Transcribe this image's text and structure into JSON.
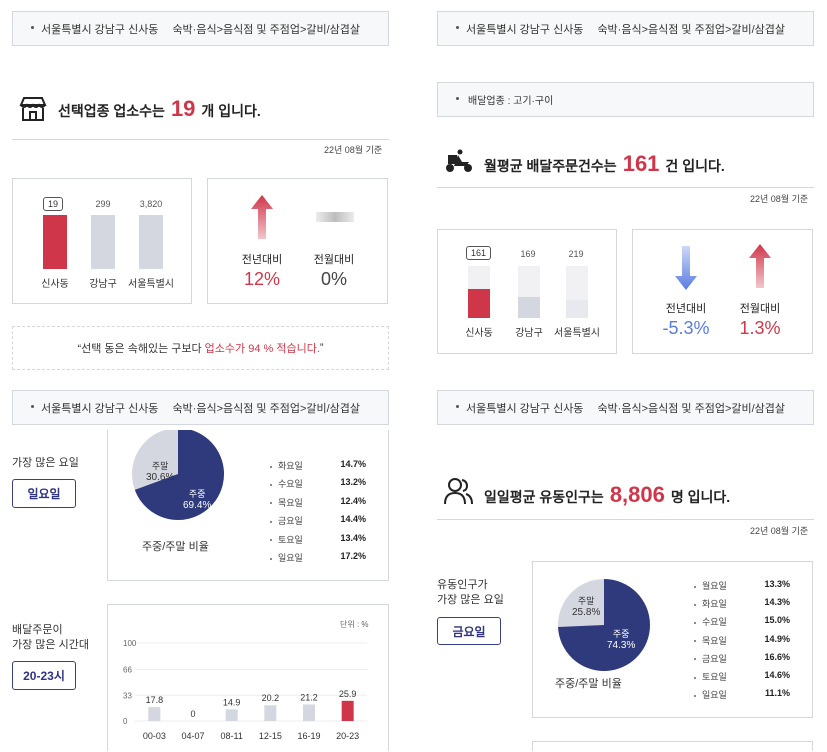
{
  "breadcrumb": {
    "region": "서울특별시 강남구 신사동",
    "category": "숙박·음식>음식점 및 주점업>갈비/삼겹살"
  },
  "panel1": {
    "title_pre": "선택업종 업소수는",
    "title_num": "19",
    "title_post": "개 입니다.",
    "basis": "22년 08월 기준",
    "bars": [
      {
        "label": "신사동",
        "value": "19",
        "fill": 0.25,
        "highlight": true
      },
      {
        "label": "강남구",
        "value": "299",
        "fill": 1,
        "highlight": false
      },
      {
        "label": "서울특별시",
        "value": "3,820",
        "fill": 1,
        "highlight": false
      }
    ],
    "yoy_label": "전년대비",
    "yoy_value": "12%",
    "mom_label": "전월대비",
    "mom_value": "0%",
    "note_pre": "“선택 동은 속해있는 구보다",
    "note_hl": "업소수가 94 % 적습니다.",
    "note_post": "”"
  },
  "panel2": {
    "delivery_type": "배달업종 : 고기·구이",
    "title_pre": "월평균 배달주문건수는",
    "title_num": "161",
    "title_post": "건 입니다.",
    "basis": "22년 08월 기준",
    "bars": [
      {
        "label": "신사동",
        "value": "161",
        "fill": 0.55,
        "highlight": true
      },
      {
        "label": "강남구",
        "value": "169",
        "fill": 0.4,
        "highlight": false
      },
      {
        "label": "서울특별시",
        "value": "219",
        "fill": 0.35,
        "highlight": false
      }
    ],
    "yoy_label": "전년대비",
    "yoy_value": "-5.3%",
    "mom_label": "전월대비",
    "mom_value": "1.3%"
  },
  "panel3": {
    "busiest_day_label": "가장 많은 요일",
    "busiest_day": "일요일",
    "pie": {
      "weekend_label": "주말",
      "weekend": "30.6%",
      "weekday_label": "주중",
      "weekday": "69.4%",
      "weekday_frac": 0.694
    },
    "pie_caption": "주중/주말 비율",
    "days": [
      {
        "d": "화요일",
        "v": "14.7%"
      },
      {
        "d": "수요일",
        "v": "13.2%"
      },
      {
        "d": "목요일",
        "v": "12.4%"
      },
      {
        "d": "금요일",
        "v": "14.4%"
      },
      {
        "d": "토요일",
        "v": "13.4%"
      },
      {
        "d": "일요일",
        "v": "17.2%"
      }
    ],
    "delivery_time_label1": "배달주문이",
    "delivery_time_label2": "가장 많은 시간대",
    "delivery_time": "20-23시"
  },
  "chart_data": {
    "type": "bar",
    "unit": "단위 : %",
    "categories": [
      "00-03",
      "04-07",
      "08-11",
      "12-15",
      "16-19",
      "20-23"
    ],
    "values": [
      17.8,
      0,
      14.9,
      20.2,
      21.2,
      25.9
    ],
    "yticks": [
      "100",
      "66",
      "33",
      "0"
    ],
    "ylim": [
      0,
      100
    ],
    "highlight_color": "#d0364a",
    "bar_color": "#d5d7e0"
  },
  "panel4": {
    "title_pre": "일일평균 유동인구는",
    "title_num": "8,806",
    "title_post": "명 입니다.",
    "basis": "22년 08월 기준",
    "busiest_day_label1": "유동인구가",
    "busiest_day_label2": "가장 많은 요일",
    "busiest_day": "금요일",
    "pie": {
      "weekend_label": "주말",
      "weekend": "25.8%",
      "weekday_label": "주중",
      "weekday": "74.3%",
      "weekday_frac": 0.743
    },
    "pie_caption": "주중/주말 비율",
    "days": [
      {
        "d": "월요일",
        "v": "13.3%"
      },
      {
        "d": "화요일",
        "v": "14.3%"
      },
      {
        "d": "수요일",
        "v": "15.0%"
      },
      {
        "d": "목요일",
        "v": "14.9%"
      },
      {
        "d": "금요일",
        "v": "16.6%"
      },
      {
        "d": "토요일",
        "v": "14.6%"
      },
      {
        "d": "일요일",
        "v": "11.1%"
      }
    ]
  },
  "colors": {
    "accent": "#d0364a",
    "navy": "#2e3a7c",
    "pie_light": "#d5d7e0",
    "blue": "#5a7ce0"
  }
}
